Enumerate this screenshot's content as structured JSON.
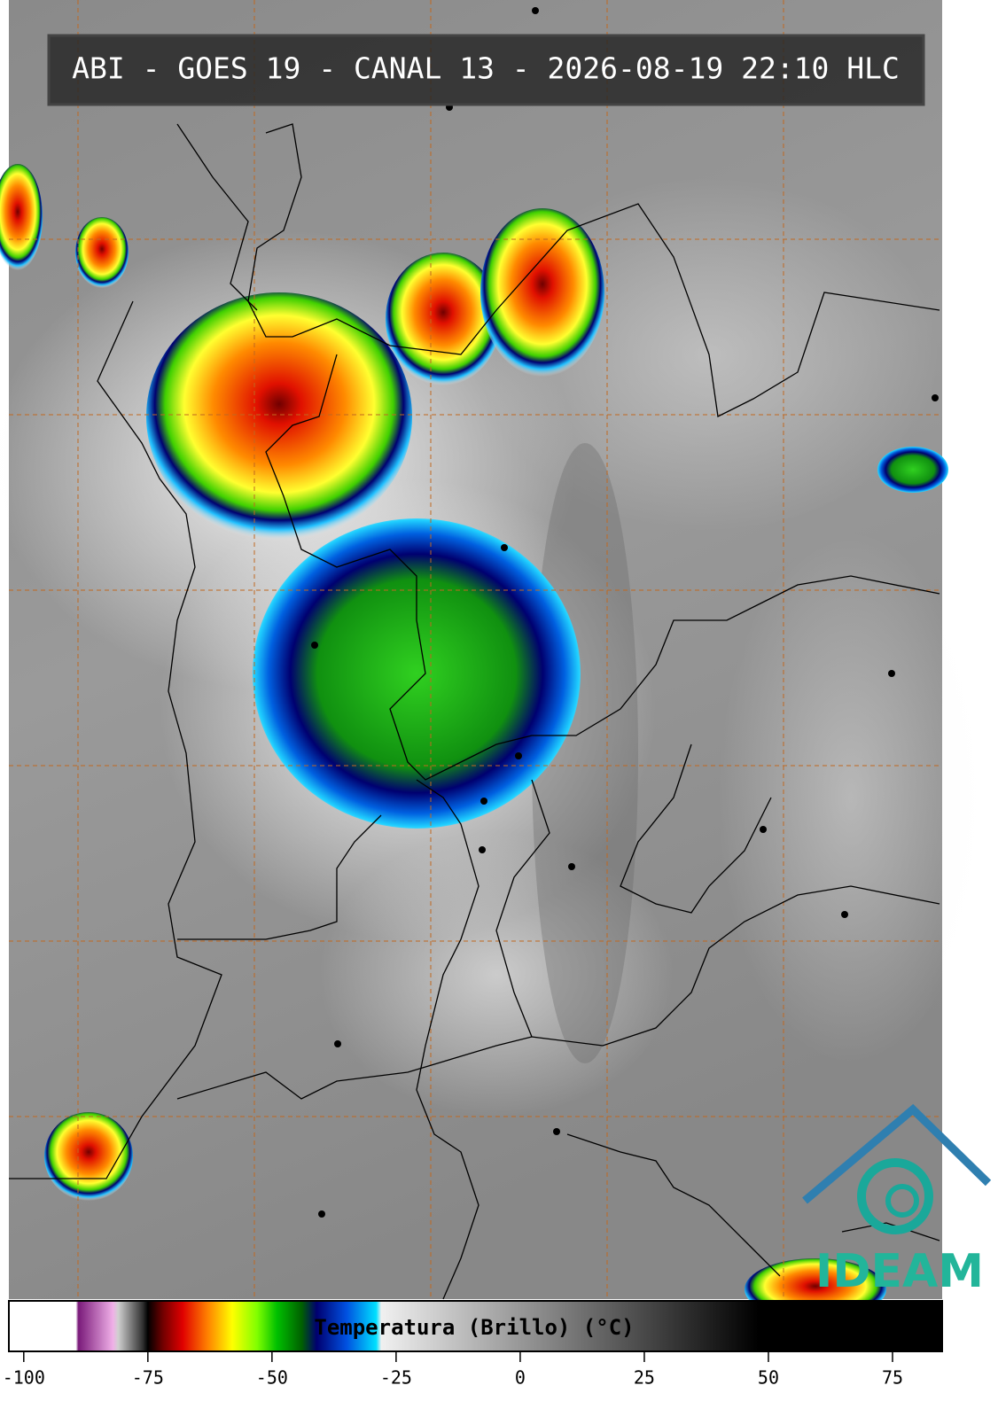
{
  "header": {
    "title": "ABI - GOES 19 - CANAL 13 - 2026-08-19 22:10 HLC"
  },
  "logo": {
    "text": "IDEAM"
  },
  "colorbar": {
    "label": "Temperatura (Brillo) (°C)",
    "lim": [
      -103,
      85
    ],
    "ticks": [
      -100,
      -75,
      -50,
      -25,
      0,
      25,
      50,
      75
    ],
    "stops": [
      {
        "value": -103,
        "color": "#ffffff"
      },
      {
        "value": -89.5,
        "color": "#ffffff"
      },
      {
        "value": -89,
        "color": "#7a1a7a"
      },
      {
        "value": -82,
        "color": "#f0b0e8"
      },
      {
        "value": -81,
        "color": "#d0d0d0"
      },
      {
        "value": -76,
        "color": "#303030"
      },
      {
        "value": -75,
        "color": "#000000"
      },
      {
        "value": -72,
        "color": "#700000"
      },
      {
        "value": -68,
        "color": "#e00000"
      },
      {
        "value": -63,
        "color": "#ff8000"
      },
      {
        "value": -58,
        "color": "#ffff00"
      },
      {
        "value": -53,
        "color": "#80ff00"
      },
      {
        "value": -49,
        "color": "#00c000"
      },
      {
        "value": -44,
        "color": "#006000"
      },
      {
        "value": -41,
        "color": "#000070"
      },
      {
        "value": -35,
        "color": "#0050e0"
      },
      {
        "value": -29,
        "color": "#00e0ff"
      },
      {
        "value": -28,
        "color": "#f0f0f0"
      },
      {
        "value": 48,
        "color": "#000000"
      },
      {
        "value": 85,
        "color": "#000000"
      }
    ]
  }
}
